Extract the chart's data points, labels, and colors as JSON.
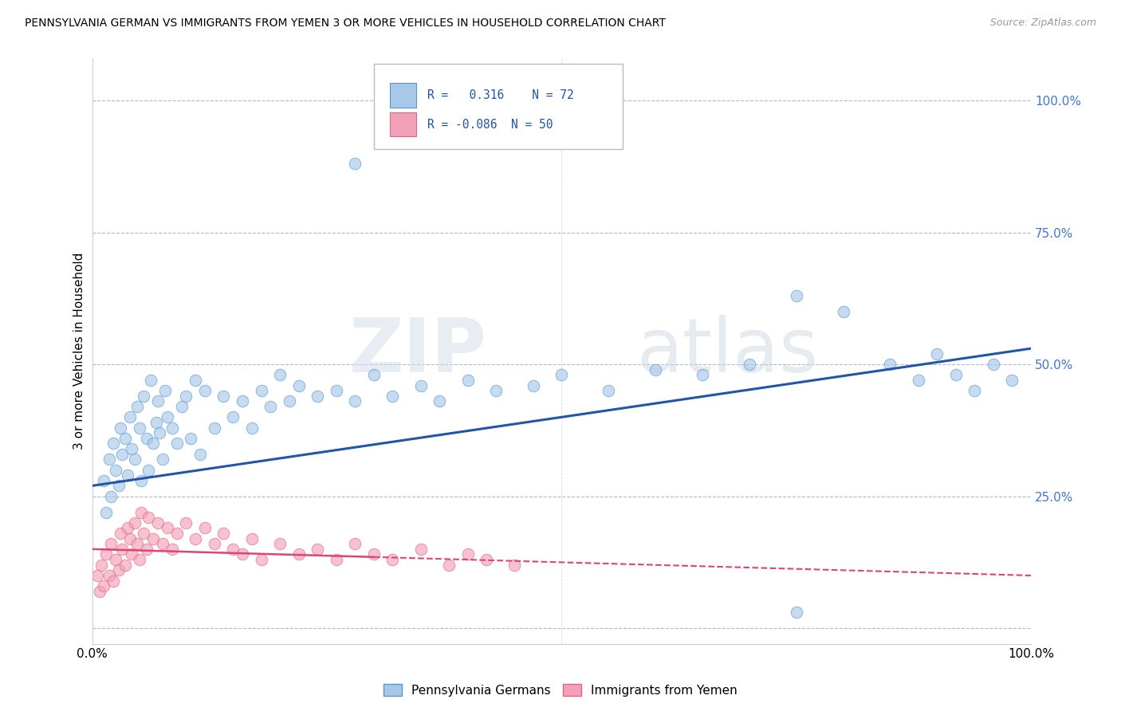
{
  "title": "PENNSYLVANIA GERMAN VS IMMIGRANTS FROM YEMEN 3 OR MORE VEHICLES IN HOUSEHOLD CORRELATION CHART",
  "source": "Source: ZipAtlas.com",
  "ylabel": "3 or more Vehicles in Household",
  "xlim": [
    0,
    100
  ],
  "ylim": [
    -3,
    108
  ],
  "blue_R": 0.316,
  "blue_N": 72,
  "pink_R": -0.086,
  "pink_N": 50,
  "blue_color": "#a8c8e8",
  "pink_color": "#f4a0b8",
  "blue_edge_color": "#5599cc",
  "pink_edge_color": "#dd6688",
  "blue_line_color": "#2255aa",
  "pink_line_color": "#dd4477",
  "watermark_color": "#c8d8e8",
  "legend_blue_label": "Pennsylvania Germans",
  "legend_pink_label": "Immigrants from Yemen",
  "blue_line_start_y": 27,
  "blue_line_end_y": 53,
  "pink_line_start_y": 15,
  "pink_line_end_y": 10,
  "blue_x": [
    1.2,
    1.5,
    1.8,
    2.0,
    2.2,
    2.5,
    2.8,
    3.0,
    3.2,
    3.5,
    3.8,
    4.0,
    4.2,
    4.5,
    4.8,
    5.0,
    5.2,
    5.5,
    5.8,
    6.0,
    6.2,
    6.5,
    6.8,
    7.0,
    7.2,
    7.5,
    7.8,
    8.0,
    8.5,
    9.0,
    9.5,
    10.0,
    10.5,
    11.0,
    11.5,
    12.0,
    13.0,
    14.0,
    15.0,
    16.0,
    17.0,
    18.0,
    19.0,
    20.0,
    21.0,
    22.0,
    24.0,
    26.0,
    28.0,
    30.0,
    32.0,
    35.0,
    37.0,
    40.0,
    43.0,
    47.0,
    50.0,
    55.0,
    60.0,
    65.0,
    70.0,
    75.0,
    80.0,
    85.0,
    88.0,
    90.0,
    92.0,
    94.0,
    96.0,
    98.0,
    75.0,
    28.0
  ],
  "blue_y": [
    28,
    22,
    32,
    25,
    35,
    30,
    27,
    38,
    33,
    36,
    29,
    40,
    34,
    32,
    42,
    38,
    28,
    44,
    36,
    30,
    47,
    35,
    39,
    43,
    37,
    32,
    45,
    40,
    38,
    35,
    42,
    44,
    36,
    47,
    33,
    45,
    38,
    44,
    40,
    43,
    38,
    45,
    42,
    48,
    43,
    46,
    44,
    45,
    43,
    48,
    44,
    46,
    43,
    47,
    45,
    46,
    48,
    45,
    49,
    48,
    50,
    63,
    60,
    50,
    47,
    52,
    48,
    45,
    50,
    47,
    3,
    88
  ],
  "pink_x": [
    0.5,
    0.8,
    1.0,
    1.2,
    1.5,
    1.8,
    2.0,
    2.2,
    2.5,
    2.8,
    3.0,
    3.2,
    3.5,
    3.8,
    4.0,
    4.2,
    4.5,
    4.8,
    5.0,
    5.2,
    5.5,
    5.8,
    6.0,
    6.5,
    7.0,
    7.5,
    8.0,
    8.5,
    9.0,
    10.0,
    11.0,
    12.0,
    13.0,
    14.0,
    15.0,
    16.0,
    17.0,
    18.0,
    20.0,
    22.0,
    24.0,
    26.0,
    28.0,
    30.0,
    32.0,
    35.0,
    38.0,
    40.0,
    42.0,
    45.0
  ],
  "pink_y": [
    10,
    7,
    12,
    8,
    14,
    10,
    16,
    9,
    13,
    11,
    18,
    15,
    12,
    19,
    17,
    14,
    20,
    16,
    13,
    22,
    18,
    15,
    21,
    17,
    20,
    16,
    19,
    15,
    18,
    20,
    17,
    19,
    16,
    18,
    15,
    14,
    17,
    13,
    16,
    14,
    15,
    13,
    16,
    14,
    13,
    15,
    12,
    14,
    13,
    12
  ],
  "ytick_positions": [
    0,
    25,
    50,
    75,
    100
  ],
  "ytick_labels": [
    "",
    "25.0%",
    "50.0%",
    "75.0%",
    "100.0%"
  ],
  "xtick_positions": [
    0,
    100
  ],
  "xtick_labels": [
    "0.0%",
    "100.0%"
  ]
}
